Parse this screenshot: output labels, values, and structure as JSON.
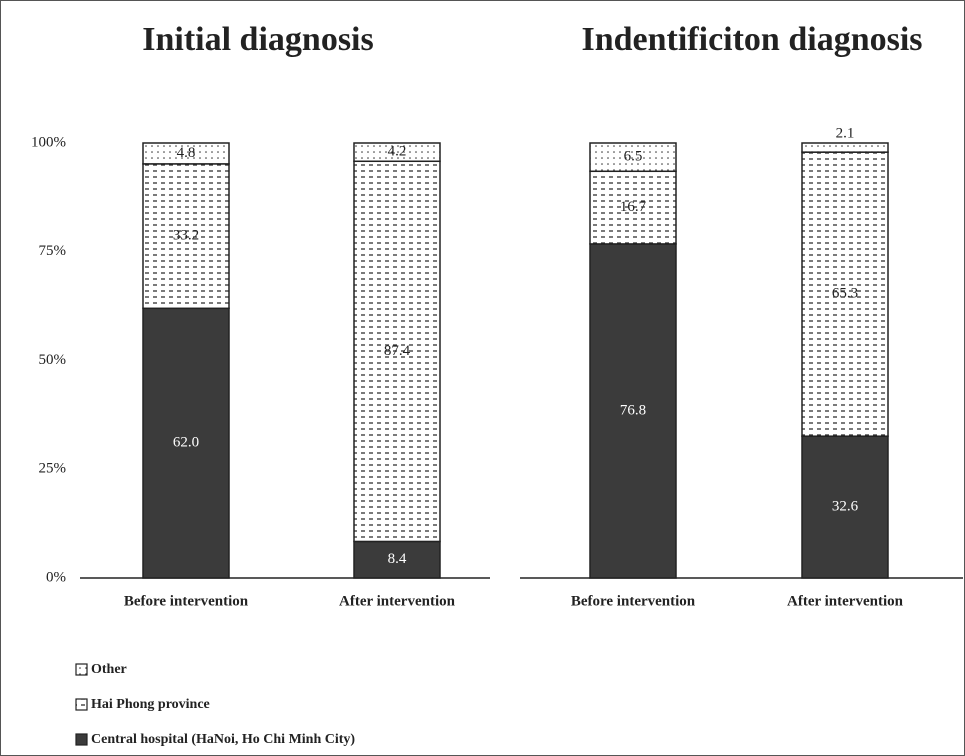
{
  "chart_data": [
    {
      "type": "bar",
      "stacked": true,
      "title": "Initial diagnosis",
      "categories": [
        "Before intervention",
        "After intervention"
      ],
      "series": [
        {
          "name": "Central hospital (HaNoi, Ho Chi Minh City)",
          "color": "#3b3b3b",
          "pattern": "solid",
          "values": [
            62.0,
            8.4
          ],
          "value_labels": [
            "62.0",
            "8.4"
          ]
        },
        {
          "name": "Hai Phong province",
          "color": "#ffffff",
          "pattern": "dashes",
          "values": [
            33.2,
            87.4
          ],
          "value_labels": [
            "33.2",
            "87.4"
          ]
        },
        {
          "name": "Other",
          "color": "#ffffff",
          "pattern": "dots",
          "values": [
            4.8,
            4.2
          ],
          "value_labels": [
            "4.8",
            "4.2"
          ]
        }
      ],
      "ylim": [
        0,
        100
      ],
      "yticks": [
        {
          "value": 0,
          "label": "0%"
        },
        {
          "value": 25,
          "label": "25%"
        },
        {
          "value": 50,
          "label": "50%"
        },
        {
          "value": 75,
          "label": "75%"
        },
        {
          "value": 100,
          "label": "100%"
        }
      ],
      "grid": false
    },
    {
      "type": "bar",
      "stacked": true,
      "title": "Indentificiton diagnosis",
      "categories": [
        "Before intervention",
        "After intervention"
      ],
      "series": [
        {
          "name": "Central hospital (HaNoi, Ho Chi Minh City)",
          "color": "#3b3b3b",
          "pattern": "solid",
          "values": [
            76.8,
            32.6
          ],
          "value_labels": [
            "76.8",
            "32.6"
          ]
        },
        {
          "name": "Hai Phong province",
          "color": "#ffffff",
          "pattern": "dashes",
          "values": [
            16.7,
            65.3
          ],
          "value_labels": [
            "16.7",
            "65.3"
          ]
        },
        {
          "name": "Other",
          "color": "#ffffff",
          "pattern": "dots",
          "values": [
            6.5,
            2.1
          ],
          "value_labels": [
            "6.5",
            "2.1"
          ]
        }
      ],
      "ylim": [
        0,
        100
      ],
      "grid": false
    }
  ]
}
